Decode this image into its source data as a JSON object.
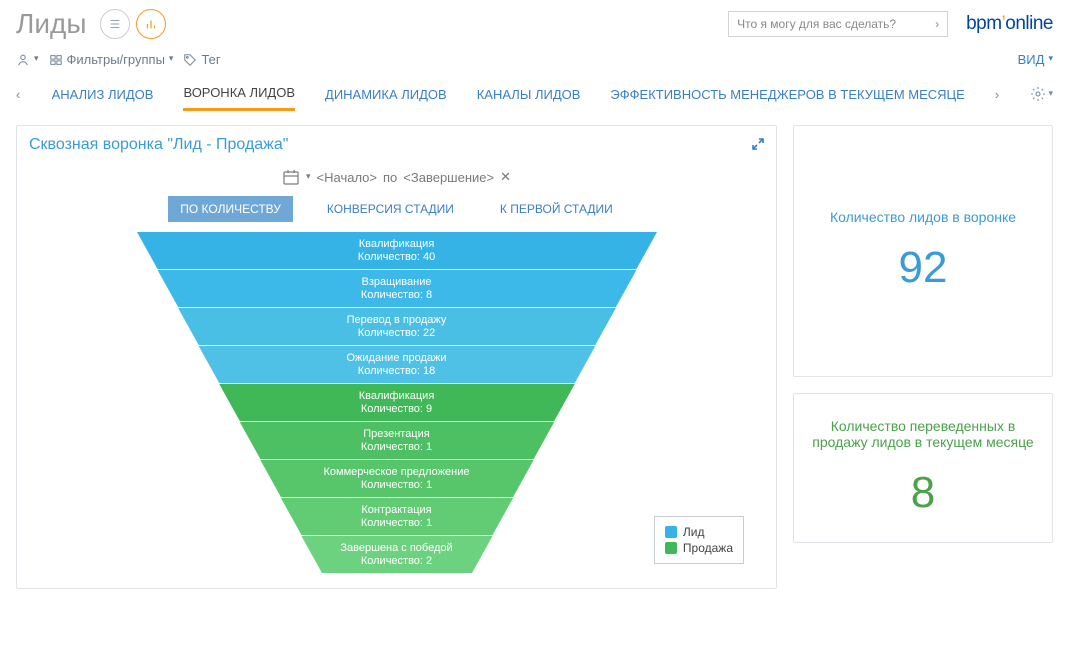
{
  "header": {
    "title": "Лиды",
    "search_placeholder": "Что я могу для вас сделать?",
    "brand_prefix": "bpm",
    "brand_suffix": "online"
  },
  "toolbar": {
    "filters_label": "Фильтры/группы",
    "tag_label": "Тег",
    "view_label": "ВИД"
  },
  "tabs": {
    "items": [
      {
        "label": "АНАЛИЗ ЛИДОВ",
        "active": false
      },
      {
        "label": "ВОРОНКА ЛИДОВ",
        "active": true
      },
      {
        "label": "ДИНАМИКА ЛИДОВ",
        "active": false
      },
      {
        "label": "КАНАЛЫ ЛИДОВ",
        "active": false
      },
      {
        "label": "ЭФФЕКТИВНОСТЬ МЕНЕДЖЕРОВ В ТЕКУЩЕМ МЕСЯЦЕ",
        "active": false
      }
    ]
  },
  "funnel_panel": {
    "title": "Сквозная воронка \"Лид - Продажа\"",
    "date_start_placeholder": "<Начало>",
    "date_join": "по",
    "date_end_placeholder": "<Завершение>",
    "subtabs": [
      {
        "label": "ПО КОЛИЧЕСТВУ",
        "active": true
      },
      {
        "label": "КОНВЕРСИЯ СТАДИИ",
        "active": false
      },
      {
        "label": "К ПЕРВОЙ СТАДИИ",
        "active": false
      }
    ],
    "count_label": "Количество",
    "top_width": 520,
    "bottom_width": 150,
    "band_height": 38,
    "stages": [
      {
        "name": "Квалификация",
        "count": 40,
        "color": "#35b3e6",
        "group": "lead"
      },
      {
        "name": "Взращивание",
        "count": 8,
        "color": "#3cb9e8",
        "group": "lead"
      },
      {
        "name": "Перевод в продажу",
        "count": 22,
        "color": "#49bfe6",
        "group": "lead"
      },
      {
        "name": "Ожидание продажи",
        "count": 18,
        "color": "#4fc1e6",
        "group": "lead"
      },
      {
        "name": "Квалификация",
        "count": 9,
        "color": "#40b858",
        "group": "sale"
      },
      {
        "name": "Презентация",
        "count": 1,
        "color": "#4cc062",
        "group": "sale"
      },
      {
        "name": "Коммерческое предложение",
        "count": 1,
        "color": "#57c66b",
        "group": "sale"
      },
      {
        "name": "Контрактация",
        "count": 1,
        "color": "#62cc75",
        "group": "sale"
      },
      {
        "name": "Завершена с победой",
        "count": 2,
        "color": "#6dd27f",
        "group": "sale"
      }
    ],
    "legend": [
      {
        "label": "Лид",
        "color": "#35b3e6"
      },
      {
        "label": "Продажа",
        "color": "#40b858"
      }
    ]
  },
  "metrics": {
    "top": {
      "title": "Количество лидов в воронке",
      "value": "92"
    },
    "bottom": {
      "title": "Количество переведенных в продажу лидов в текущем месяце",
      "value": "8"
    }
  }
}
